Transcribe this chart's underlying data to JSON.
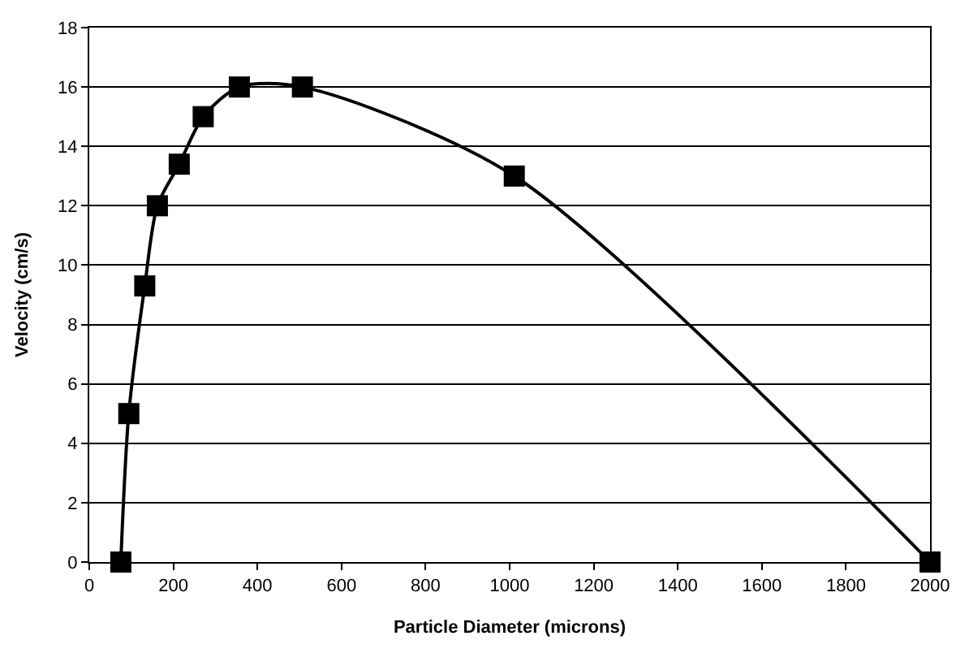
{
  "chart_data": {
    "type": "line",
    "xlabel": "Particle Diameter (microns)",
    "ylabel": "Velocity (cm/s)",
    "x": [
      75,
      94,
      132,
      162,
      214,
      271,
      357,
      507,
      1011,
      2000
    ],
    "series": [
      {
        "color": "#000000",
        "values": [
          0,
          5,
          9.3,
          12,
          13.4,
          15,
          16,
          16,
          13,
          0
        ]
      }
    ],
    "xlim": [
      0,
      2000
    ],
    "xticks": [
      0,
      200,
      400,
      600,
      800,
      1000,
      1200,
      1400,
      1600,
      1800,
      2000
    ],
    "ylim": [
      0,
      18
    ],
    "yticks": [
      0,
      2,
      4,
      6,
      8,
      10,
      12,
      14,
      16,
      18
    ],
    "grid": "y",
    "legend": false,
    "marker": "square",
    "line_style": "solid"
  }
}
